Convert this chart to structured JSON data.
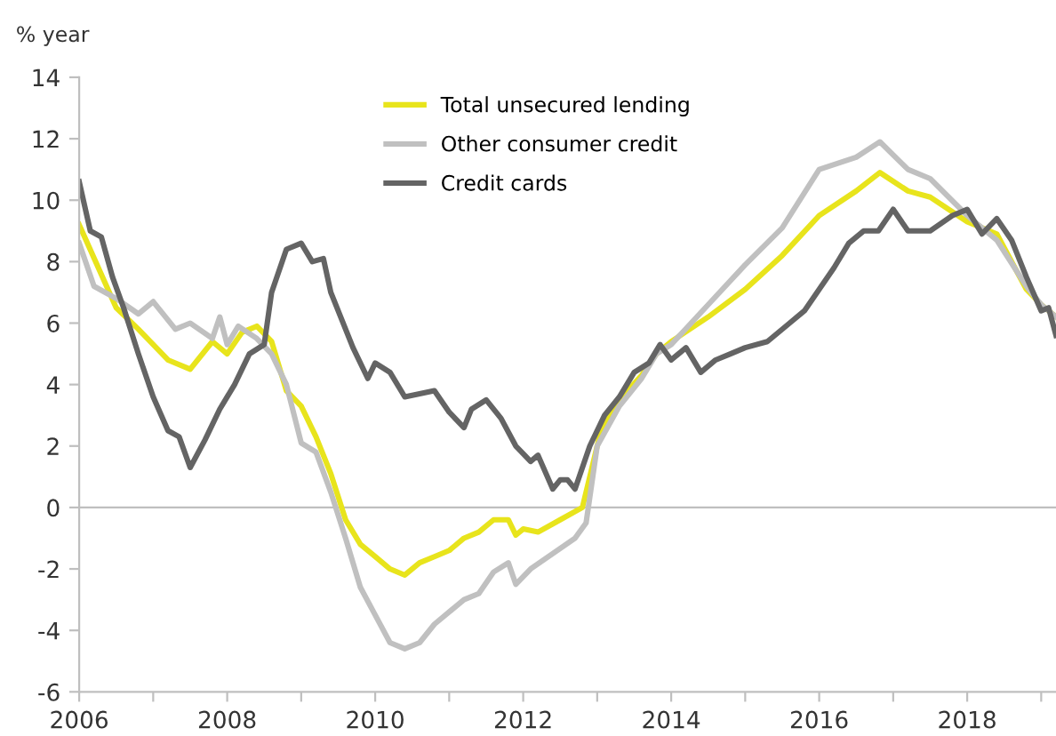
{
  "chart_data": {
    "type": "line",
    "ylabel": "% year",
    "xlim": [
      2006,
      2019.2
    ],
    "xticks": [
      2006,
      {
        "value": 2007,
        "label": null
      },
      2008,
      {
        "value": 2009,
        "label": null
      },
      2010,
      {
        "value": 2011,
        "label": null
      },
      2012,
      {
        "value": 2013,
        "label": null
      },
      2014,
      {
        "value": 2015,
        "label": null
      },
      2016,
      {
        "value": 2017,
        "label": null
      },
      2018,
      {
        "value": 2019,
        "label": null
      }
    ],
    "ylim": [
      -6,
      14
    ],
    "yticks": [
      -6,
      -4,
      -2,
      0,
      2,
      4,
      6,
      8,
      10,
      12,
      14
    ],
    "grid": false,
    "legend": "top",
    "marker": "none",
    "line_style": "solid",
    "ref_lines": [
      {
        "axis": "y",
        "value": 0,
        "color": "#bfbfbf"
      }
    ],
    "series": [
      {
        "name": "Total unsecured lending",
        "color": "#e8e41c",
        "x": [
          2006,
          2006.5,
          2006.8,
          2007.2,
          2007.5,
          2007.8,
          2008,
          2008.2,
          2008.4,
          2008.6,
          2008.8,
          2009,
          2009.2,
          2009.4,
          2009.6,
          2009.8,
          2010,
          2010.2,
          2010.4,
          2010.6,
          2010.8,
          2011,
          2011.2,
          2011.4,
          2011.6,
          2011.8,
          2011.9,
          2012,
          2012.2,
          2012.5,
          2012.8,
          2013.05,
          2013.3,
          2013.6,
          2013.8,
          2014,
          2014.5,
          2015,
          2015.5,
          2016,
          2016.5,
          2016.82,
          2017.2,
          2017.5,
          2018,
          2018.4,
          2018.8,
          2019,
          2019.2
        ],
        "values": [
          9.2,
          6.5,
          5.8,
          4.8,
          4.5,
          5.4,
          5.0,
          5.7,
          5.9,
          5.4,
          3.8,
          3.3,
          2.3,
          1.1,
          -0.4,
          -1.2,
          -1.6,
          -2.0,
          -2.2,
          -1.8,
          -1.6,
          -1.4,
          -1.0,
          -0.8,
          -0.4,
          -0.4,
          -0.9,
          -0.7,
          -0.8,
          -0.4,
          0,
          2.5,
          3.5,
          4.3,
          5.0,
          5.4,
          6.2,
          7.1,
          8.2,
          9.5,
          10.3,
          10.9,
          10.3,
          10.1,
          9.3,
          8.9,
          7.1,
          6.6,
          6.2
        ]
      },
      {
        "name": "Other consumer credit",
        "color": "#c0c0c0",
        "x": [
          2006,
          2006.2,
          2006.5,
          2006.8,
          2007,
          2007.3,
          2007.5,
          2007.8,
          2007.9,
          2008,
          2008.15,
          2008.4,
          2008.6,
          2008.8,
          2009,
          2009.2,
          2009.4,
          2009.6,
          2009.8,
          2010,
          2010.2,
          2010.4,
          2010.6,
          2010.8,
          2011,
          2011.2,
          2011.4,
          2011.6,
          2011.8,
          2011.9,
          2012.1,
          2012.4,
          2012.7,
          2012.85,
          2013,
          2013.3,
          2013.6,
          2013.8,
          2014,
          2014.5,
          2015,
          2015.5,
          2016,
          2016.5,
          2016.82,
          2017.2,
          2017.5,
          2018,
          2018.4,
          2018.8,
          2019,
          2019.2
        ],
        "values": [
          8.6,
          7.2,
          6.8,
          6.3,
          6.7,
          5.8,
          6.0,
          5.5,
          6.2,
          5.3,
          5.9,
          5.5,
          5.0,
          4.0,
          2.1,
          1.8,
          0.5,
          -1.0,
          -2.6,
          -3.5,
          -4.4,
          -4.6,
          -4.4,
          -3.8,
          -3.4,
          -3.0,
          -2.8,
          -2.1,
          -1.8,
          -2.5,
          -2.0,
          -1.5,
          -1.0,
          -0.5,
          2.0,
          3.3,
          4.2,
          5.0,
          5.3,
          6.6,
          7.9,
          9.1,
          11.0,
          11.4,
          11.9,
          11.0,
          10.7,
          9.5,
          8.7,
          7.2,
          6.6,
          6.2
        ]
      },
      {
        "name": "Credit cards",
        "color": "#646464",
        "x": [
          2006,
          2006.15,
          2006.3,
          2006.45,
          2006.6,
          2006.8,
          2007,
          2007.2,
          2007.35,
          2007.5,
          2007.7,
          2007.9,
          2008.1,
          2008.3,
          2008.5,
          2008.6,
          2008.8,
          2009,
          2009.15,
          2009.3,
          2009.4,
          2009.7,
          2009.9,
          2010,
          2010.2,
          2010.4,
          2010.6,
          2010.8,
          2011,
          2011.2,
          2011.3,
          2011.5,
          2011.7,
          2011.9,
          2012.1,
          2012.2,
          2012.4,
          2012.5,
          2012.6,
          2012.7,
          2012.9,
          2013.1,
          2013.3,
          2013.5,
          2013.7,
          2013.85,
          2014,
          2014.2,
          2014.4,
          2014.6,
          2014.8,
          2015,
          2015.3,
          2015.6,
          2015.8,
          2016,
          2016.2,
          2016.4,
          2016.6,
          2016.8,
          2017,
          2017.2,
          2017.5,
          2017.8,
          2018,
          2018.2,
          2018.4,
          2018.6,
          2018.8,
          2019,
          2019.1,
          2019.2
        ],
        "values": [
          10.6,
          9.0,
          8.8,
          7.5,
          6.5,
          5.0,
          3.6,
          2.5,
          2.3,
          1.3,
          2.2,
          3.2,
          4.0,
          5.0,
          5.3,
          7.0,
          8.4,
          8.6,
          8.0,
          8.1,
          7.0,
          5.2,
          4.2,
          4.7,
          4.4,
          3.6,
          3.7,
          3.8,
          3.1,
          2.6,
          3.2,
          3.5,
          2.9,
          2.0,
          1.5,
          1.7,
          0.6,
          0.9,
          0.9,
          0.6,
          2.0,
          3.0,
          3.6,
          4.4,
          4.7,
          5.3,
          4.8,
          5.2,
          4.4,
          4.8,
          5.0,
          5.2,
          5.4,
          6.0,
          6.4,
          7.1,
          7.8,
          8.6,
          9.0,
          9.0,
          9.7,
          9.0,
          9.0,
          9.5,
          9.7,
          8.9,
          9.4,
          8.7,
          7.5,
          6.4,
          6.5,
          5.6
        ]
      }
    ]
  }
}
